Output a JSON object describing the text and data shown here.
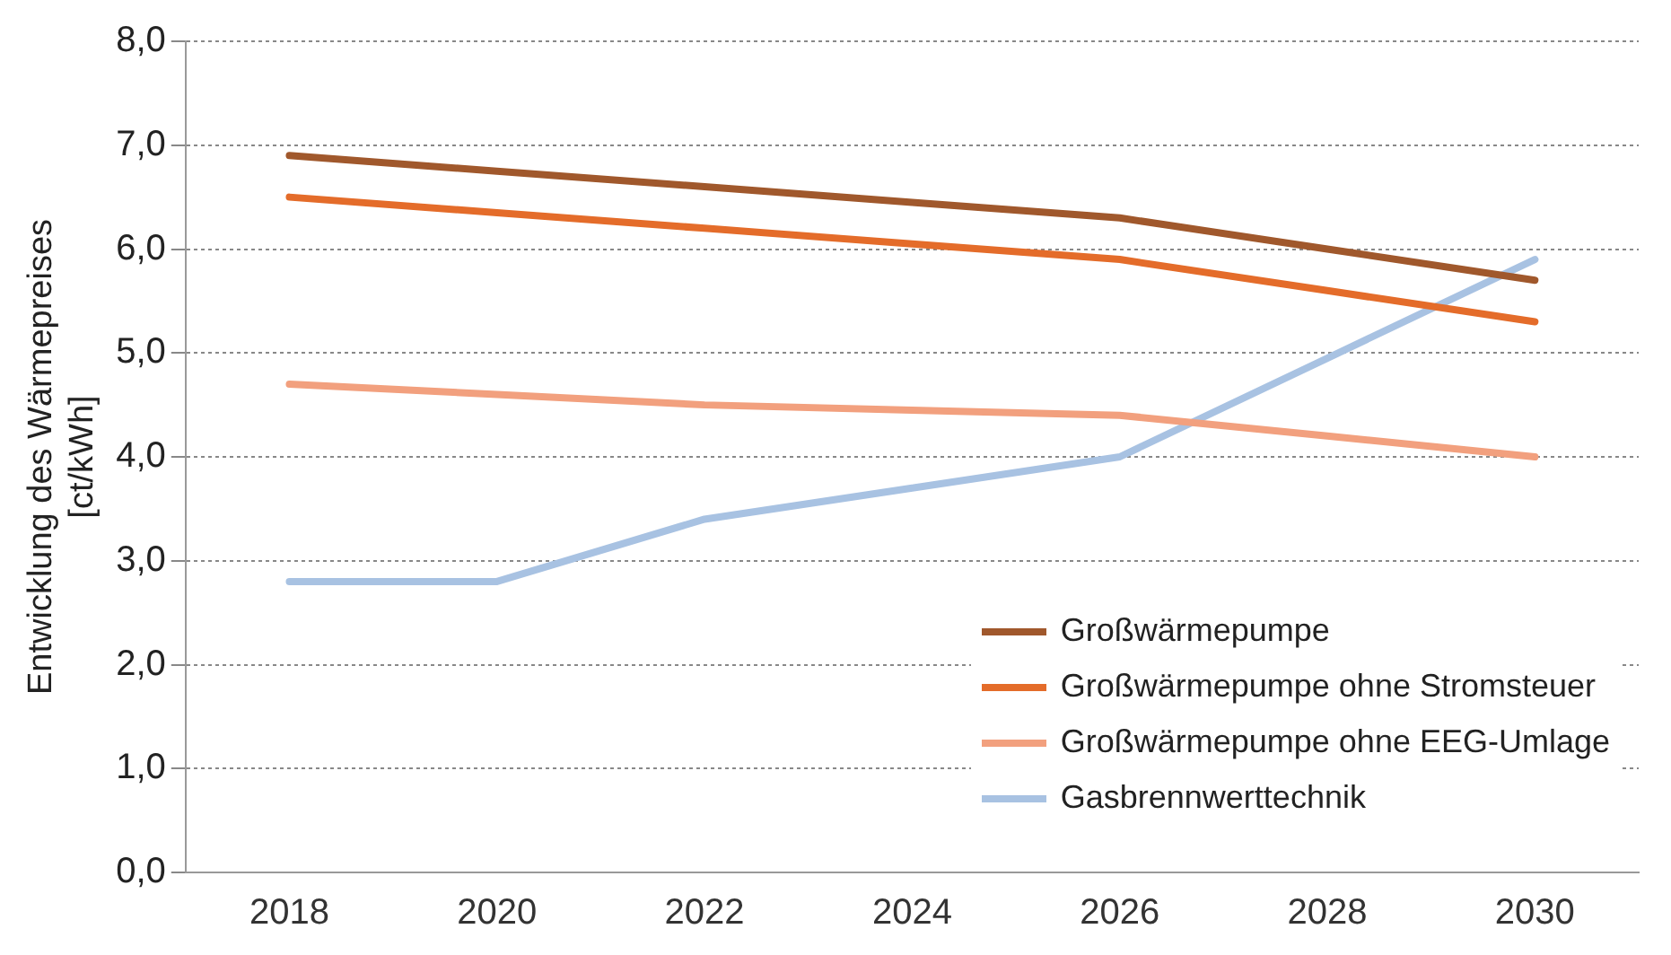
{
  "chart_data": {
    "type": "line",
    "ylabel": "Entwicklung des Wärmepreises\n[ct/kWh]",
    "categories": [
      "2018",
      "2020",
      "2022",
      "2024",
      "2026",
      "2028",
      "2030"
    ],
    "series": [
      {
        "name": "Großwärmepumpe",
        "color": "#a0582c",
        "values": [
          6.9,
          6.75,
          6.6,
          6.45,
          6.3,
          6.0,
          5.7
        ]
      },
      {
        "name": "Großwärmepumpe ohne Stromsteuer",
        "color": "#e46c2a",
        "values": [
          6.5,
          6.35,
          6.2,
          6.05,
          5.9,
          5.6,
          5.3
        ]
      },
      {
        "name": "Großwärmepumpe ohne EEG-Umlage",
        "color": "#f2a07e",
        "values": [
          4.7,
          4.6,
          4.5,
          4.45,
          4.4,
          4.2,
          4.0
        ]
      },
      {
        "name": "Gasbrennwerttechnik",
        "color": "#a8c2e2",
        "values": [
          2.8,
          2.8,
          3.4,
          3.7,
          4.0,
          4.95,
          5.9
        ]
      }
    ],
    "ylim": [
      0,
      8
    ],
    "yticks": [
      {
        "value": 0,
        "label": "0,0"
      },
      {
        "value": 1,
        "label": "1,0"
      },
      {
        "value": 2,
        "label": "2,0"
      },
      {
        "value": 3,
        "label": "3,0"
      },
      {
        "value": 4,
        "label": "4,0"
      },
      {
        "value": 5,
        "label": "5,0"
      },
      {
        "value": 6,
        "label": "6,0"
      },
      {
        "value": 7,
        "label": "7,0"
      },
      {
        "value": 8,
        "label": "8,0"
      }
    ],
    "grid": "y",
    "legend": "bottom right",
    "marker": "none",
    "line_style": "solid"
  }
}
